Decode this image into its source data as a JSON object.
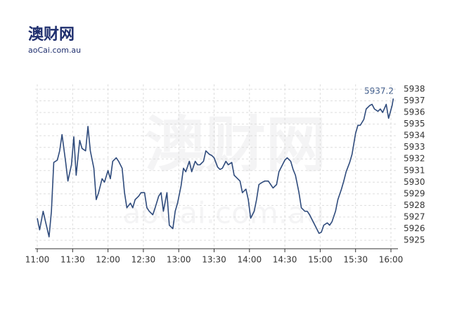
{
  "logo": {
    "name": "澳财网",
    "domain": "aoCai.com.au"
  },
  "chart_data": {
    "type": "line",
    "annotation": "5937.2",
    "color": "#2f4b7c",
    "grid": true,
    "x": [
      "11:00",
      "11:02",
      "11:05",
      "11:07",
      "11:10",
      "11:12",
      "11:14",
      "11:17",
      "11:19",
      "11:21",
      "11:24",
      "11:26",
      "11:29",
      "11:31",
      "11:33",
      "11:36",
      "11:38",
      "11:41",
      "11:43",
      "11:45",
      "11:48",
      "11:50",
      "11:52",
      "11:55",
      "11:57",
      "12:00",
      "12:02",
      "12:04",
      "12:07",
      "12:09",
      "12:12",
      "12:14",
      "12:16",
      "12:19",
      "12:21",
      "12:23",
      "12:26",
      "12:28",
      "12:31",
      "12:33",
      "12:35",
      "12:38",
      "12:40",
      "12:43",
      "12:45",
      "12:47",
      "12:50",
      "12:52",
      "12:55",
      "12:57",
      "12:59",
      "13:02",
      "13:04",
      "13:06",
      "13:09",
      "13:11",
      "13:14",
      "13:16",
      "13:18",
      "13:21",
      "13:23",
      "13:26",
      "13:28",
      "13:30",
      "13:33",
      "13:35",
      "13:37",
      "13:40",
      "13:42",
      "13:45",
      "13:47",
      "13:49",
      "13:52",
      "13:54",
      "13:57",
      "13:59",
      "14:01",
      "14:04",
      "14:06",
      "14:08",
      "14:11",
      "14:13",
      "14:16",
      "14:18",
      "14:20",
      "14:23",
      "14:25",
      "14:28",
      "14:30",
      "14:32",
      "14:35",
      "14:37",
      "14:39",
      "14:42",
      "14:44",
      "14:47",
      "14:49",
      "14:51",
      "14:54",
      "14:56",
      "14:59",
      "15:01",
      "15:03",
      "15:06",
      "15:08",
      "15:10",
      "15:13",
      "15:15",
      "15:18",
      "15:20",
      "15:22",
      "15:25",
      "15:27",
      "15:30",
      "15:32",
      "15:34",
      "15:37",
      "15:39",
      "15:42",
      "15:44",
      "15:46",
      "15:49",
      "15:51",
      "15:53",
      "15:56",
      "15:58",
      "16:01",
      "16:02"
    ],
    "values": [
      5926.9,
      5925.9,
      5927.5,
      5926.6,
      5925.3,
      5927.5,
      5931.7,
      5931.9,
      5932.7,
      5934.1,
      5931.8,
      5930.1,
      5931.5,
      5933.9,
      5930.6,
      5933.6,
      5932.9,
      5932.7,
      5934.8,
      5932.7,
      5931.2,
      5928.5,
      5929.1,
      5930.3,
      5930.0,
      5931.0,
      5930.3,
      5931.8,
      5932.1,
      5931.8,
      5931.2,
      5929.1,
      5927.8,
      5928.2,
      5927.8,
      5928.5,
      5928.8,
      5929.1,
      5929.1,
      5927.8,
      5927.5,
      5927.2,
      5927.8,
      5928.8,
      5929.1,
      5927.5,
      5929.1,
      5926.3,
      5926.0,
      5927.5,
      5928.2,
      5929.7,
      5931.2,
      5930.9,
      5931.8,
      5930.9,
      5931.8,
      5931.5,
      5931.5,
      5931.8,
      5932.7,
      5932.4,
      5932.3,
      5932.1,
      5931.3,
      5931.1,
      5931.2,
      5931.8,
      5931.5,
      5931.7,
      5930.6,
      5930.4,
      5930.1,
      5929.1,
      5929.4,
      5928.5,
      5926.9,
      5927.5,
      5928.5,
      5929.8,
      5930.0,
      5930.1,
      5930.1,
      5929.8,
      5929.5,
      5929.8,
      5930.9,
      5931.5,
      5931.9,
      5932.1,
      5931.8,
      5931.1,
      5930.6,
      5929.1,
      5927.8,
      5927.5,
      5927.5,
      5927.2,
      5926.6,
      5926.2,
      5925.6,
      5925.7,
      5926.3,
      5926.5,
      5926.3,
      5926.6,
      5927.5,
      5928.5,
      5929.4,
      5930.1,
      5930.9,
      5931.7,
      5932.4,
      5934.2,
      5934.9,
      5934.9,
      5935.4,
      5936.3,
      5936.6,
      5936.7,
      5936.3,
      5936.1,
      5936.3,
      5936.0,
      5936.7,
      5935.5,
      5936.6,
      5937.2
    ],
    "xlim": [
      "11:00",
      "16:00"
    ],
    "xticks": [
      "11:00",
      "11:30",
      "12:00",
      "12:30",
      "13:00",
      "13:30",
      "14:00",
      "14:30",
      "15:00",
      "15:30",
      "16:00"
    ],
    "ylim": [
      5925,
      5938
    ],
    "yticks": [
      5925,
      5926,
      5927,
      5928,
      5929,
      5930,
      5931,
      5932,
      5933,
      5934,
      5935,
      5936,
      5937,
      5938
    ]
  }
}
